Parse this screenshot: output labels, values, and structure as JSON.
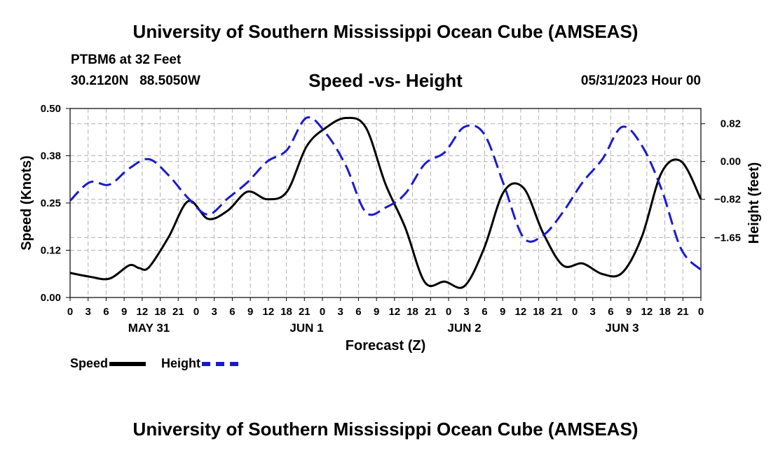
{
  "header": {
    "title": "University of Southern Mississippi Ocean Cube (AMSEAS)",
    "station": "PTBM6 at 32 Feet",
    "coords": "30.2120N   88.5050W",
    "subtitle": "Speed -vs- Height",
    "datetime": "05/31/2023 Hour 00",
    "footer_title": "University of Southern Mississippi Ocean Cube (AMSEAS)"
  },
  "colors": {
    "speed": "#000000",
    "height": "#1a1acd",
    "grid": "#b0b0b0"
  },
  "legend": {
    "speed_label": "Speed",
    "height_label": "Height"
  },
  "chart_data": {
    "type": "line",
    "xlabel": "Forecast (Z)",
    "ylabel": "Speed (Knots)",
    "ylabel_right": "Height (feet)",
    "xlim": [
      0,
      96
    ],
    "ylim": [
      0,
      0.5
    ],
    "ylim_right": [
      -2.95,
      1.15
    ],
    "yticks": [
      "0.00",
      "0.12",
      "0.25",
      "0.38",
      "0.50"
    ],
    "yticks_right": [
      {
        "value": 0.82,
        "label": "0.82"
      },
      {
        "value": 0.0,
        "label": "0.00"
      },
      {
        "value": -0.82,
        "label": "−0.82"
      },
      {
        "value": -1.65,
        "label": "−1.65"
      }
    ],
    "xtick_labels": [
      "0",
      "3",
      "6",
      "9",
      "12",
      "18",
      "21",
      "0",
      "3",
      "6",
      "9",
      "12",
      "18",
      "21",
      "0",
      "3",
      "6",
      "9",
      "12",
      "18",
      "21",
      "0",
      "3",
      "6",
      "9",
      "12",
      "18",
      "21",
      "0",
      "3",
      "6",
      "9",
      "12",
      "18",
      "21",
      "0"
    ],
    "day_labels": [
      {
        "label": "MAY 31",
        "x": 12
      },
      {
        "label": "JUN 1",
        "x": 36
      },
      {
        "label": "JUN 2",
        "x": 60
      },
      {
        "label": "JUN 3",
        "x": 84
      }
    ],
    "grid": true,
    "series": [
      {
        "name": "Speed",
        "axis": "left",
        "style": "solid",
        "x": [
          0,
          3,
          6,
          9,
          10.5,
          12,
          15,
          18,
          21,
          24,
          27,
          30,
          33,
          36,
          39,
          42,
          45,
          48,
          51,
          54,
          57,
          60,
          63,
          66,
          69,
          72,
          75,
          78,
          81,
          84,
          87,
          90,
          93,
          96
        ],
        "values": [
          0.065,
          0.055,
          0.05,
          0.085,
          0.078,
          0.08,
          0.16,
          0.255,
          0.208,
          0.23,
          0.28,
          0.26,
          0.28,
          0.4,
          0.45,
          0.475,
          0.45,
          0.3,
          0.185,
          0.04,
          0.042,
          0.03,
          0.13,
          0.28,
          0.29,
          0.17,
          0.085,
          0.09,
          0.062,
          0.065,
          0.16,
          0.33,
          0.36,
          0.26
        ]
      },
      {
        "name": "Height",
        "axis": "right",
        "style": "dashed",
        "x": [
          0,
          3,
          6,
          9,
          12,
          15,
          18,
          21,
          24,
          27,
          30,
          33,
          36,
          39,
          42,
          45,
          48,
          51,
          54,
          57,
          60,
          63,
          66,
          69,
          72,
          75,
          78,
          81,
          84,
          87,
          90,
          93,
          96
        ],
        "values": [
          -0.85,
          -0.45,
          -0.5,
          -0.15,
          0.05,
          -0.3,
          -0.8,
          -1.15,
          -0.8,
          -0.45,
          0.0,
          0.25,
          0.95,
          0.6,
          -0.1,
          -1.1,
          -1.0,
          -0.7,
          -0.05,
          0.2,
          0.75,
          0.6,
          -0.5,
          -1.65,
          -1.6,
          -1.1,
          -0.45,
          0.05,
          0.75,
          0.35,
          -0.6,
          -1.9,
          -2.35
        ]
      }
    ]
  }
}
